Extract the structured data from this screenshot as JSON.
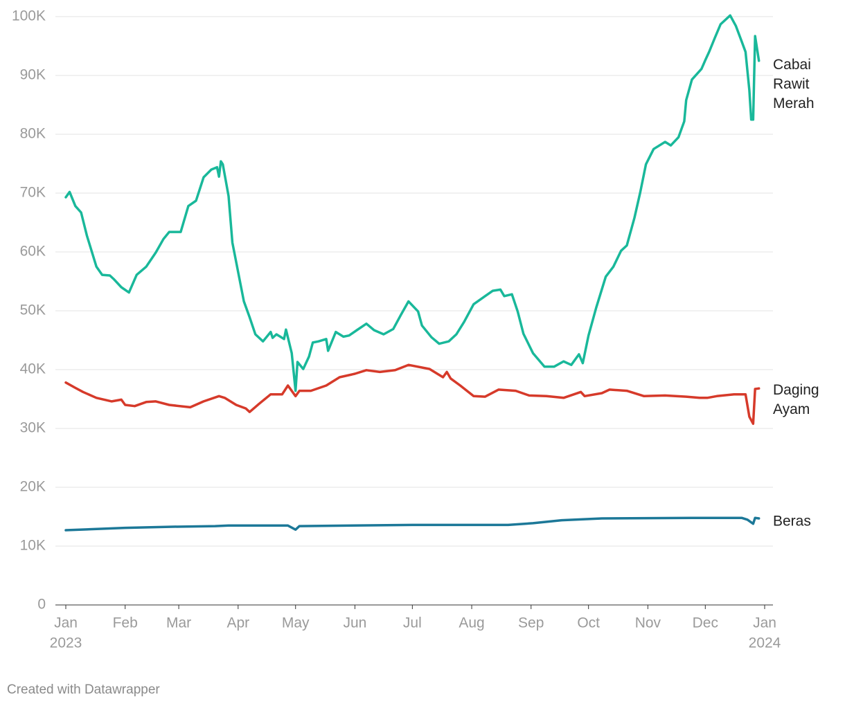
{
  "chart_data": {
    "type": "line",
    "footer": "Created with Datawrapper",
    "xlim": [
      0,
      365
    ],
    "xticks": [
      {
        "value": 0,
        "label": "Jan"
      },
      {
        "value": 31,
        "label": "Feb"
      },
      {
        "value": 59,
        "label": "Mar"
      },
      {
        "value": 90,
        "label": "Apr"
      },
      {
        "value": 120,
        "label": "May"
      },
      {
        "value": 151,
        "label": "Jun"
      },
      {
        "value": 181,
        "label": "Jul"
      },
      {
        "value": 212,
        "label": "Aug"
      },
      {
        "value": 243,
        "label": "Sep"
      },
      {
        "value": 273,
        "label": "Oct"
      },
      {
        "value": 304,
        "label": "Nov"
      },
      {
        "value": 334,
        "label": "Dec"
      },
      {
        "value": 365,
        "label": "Jan"
      }
    ],
    "year_labels": [
      {
        "value": 0,
        "label": "2023"
      },
      {
        "value": 365,
        "label": "2024"
      }
    ],
    "ylim": [
      0,
      100000
    ],
    "yticks": [
      {
        "value": 0,
        "label": "0"
      },
      {
        "value": 10000,
        "label": "10K"
      },
      {
        "value": 20000,
        "label": "20K"
      },
      {
        "value": 30000,
        "label": "30K"
      },
      {
        "value": 40000,
        "label": "40K"
      },
      {
        "value": 50000,
        "label": "50K"
      },
      {
        "value": 60000,
        "label": "60K"
      },
      {
        "value": 70000,
        "label": "70K"
      },
      {
        "value": 80000,
        "label": "80K"
      },
      {
        "value": 90000,
        "label": "90K"
      },
      {
        "value": 100000,
        "label": "100K"
      }
    ],
    "grid": true,
    "series": [
      {
        "name": "Cabai Rawit Merah",
        "color": "#19b89a",
        "x": [
          0,
          2,
          5,
          8,
          11,
          16,
          19,
          23,
          25,
          29,
          33,
          37,
          42,
          47,
          51,
          54,
          60,
          64,
          68,
          72,
          76,
          79,
          80,
          81,
          82,
          85,
          87,
          90,
          93,
          96,
          99,
          103,
          107,
          108,
          110,
          114,
          115,
          118,
          120,
          121,
          124,
          127,
          129,
          132,
          136,
          137,
          141,
          145,
          148,
          152,
          157,
          161,
          166,
          171,
          175,
          179,
          184,
          186,
          191,
          195,
          200,
          204,
          208,
          213,
          219,
          223,
          227,
          229,
          233,
          236,
          239,
          244,
          250,
          255,
          260,
          264,
          268,
          270,
          273,
          277,
          282,
          286,
          290,
          293,
          297,
          300,
          303,
          307,
          313,
          316,
          320,
          323,
          324,
          327,
          332,
          334,
          336,
          339,
          342,
          347,
          350,
          353,
          355,
          357,
          358,
          359,
          360,
          362
        ],
        "values": [
          69300,
          70200,
          67800,
          66700,
          62800,
          57500,
          56100,
          56000,
          55400,
          54000,
          53100,
          56100,
          57500,
          59900,
          62200,
          63400,
          63400,
          67800,
          68700,
          72700,
          74000,
          74400,
          72800,
          75400,
          74900,
          69500,
          61600,
          56600,
          51600,
          48900,
          46000,
          44800,
          46400,
          45400,
          46000,
          45200,
          46800,
          42800,
          36400,
          41300,
          40100,
          42200,
          44600,
          44800,
          45200,
          43200,
          46400,
          45600,
          45800,
          46700,
          47800,
          46700,
          46000,
          46900,
          49300,
          51600,
          49900,
          47500,
          45500,
          44400,
          44800,
          46000,
          48100,
          51100,
          52500,
          53400,
          53600,
          52500,
          52800,
          49900,
          46100,
          42800,
          40500,
          40500,
          41400,
          40800,
          42600,
          41100,
          45800,
          50500,
          55800,
          57500,
          60200,
          61100,
          65800,
          70100,
          74900,
          77500,
          78700,
          78100,
          79500,
          82200,
          85800,
          89300,
          91100,
          92600,
          94000,
          96400,
          98700,
          100200,
          98400,
          95800,
          94000,
          87500,
          82500,
          82500,
          96700,
          92500
        ]
      },
      {
        "name": "Daging Ayam",
        "color": "#d63a2a",
        "x": [
          0,
          5,
          9,
          16,
          24,
          29,
          31,
          36,
          42,
          47,
          54,
          65,
          72,
          80,
          83,
          89,
          94,
          96,
          101,
          107,
          113,
          116,
          120,
          122,
          128,
          136,
          143,
          151,
          157,
          164,
          172,
          179,
          190,
          197,
          199,
          201,
          206,
          213,
          219,
          226,
          235,
          242,
          251,
          260,
          269,
          271,
          280,
          284,
          293,
          302,
          313,
          324,
          331,
          335,
          340,
          349,
          355,
          357,
          359,
          360,
          362
        ],
        "values": [
          37800,
          36900,
          36200,
          35200,
          34600,
          34900,
          34000,
          33800,
          34500,
          34600,
          34000,
          33600,
          34600,
          35500,
          35200,
          34000,
          33400,
          32800,
          34200,
          35800,
          35800,
          37300,
          35500,
          36400,
          36400,
          37300,
          38700,
          39300,
          39900,
          39600,
          39900,
          40800,
          40100,
          38700,
          39600,
          38500,
          37300,
          35500,
          35400,
          36600,
          36400,
          35600,
          35500,
          35200,
          36200,
          35500,
          36000,
          36600,
          36400,
          35500,
          35600,
          35400,
          35200,
          35200,
          35500,
          35800,
          35800,
          32000,
          30800,
          36700,
          36800
        ]
      },
      {
        "name": "Beras",
        "color": "#1c7898",
        "x": [
          0,
          31,
          56,
          78,
          85,
          116,
          120,
          122,
          181,
          231,
          244,
          259,
          280,
          327,
          353,
          356,
          359,
          360,
          362
        ],
        "values": [
          12700,
          13100,
          13300,
          13400,
          13500,
          13500,
          12800,
          13400,
          13600,
          13600,
          13900,
          14400,
          14700,
          14800,
          14800,
          14500,
          13800,
          14800,
          14700
        ]
      }
    ]
  }
}
